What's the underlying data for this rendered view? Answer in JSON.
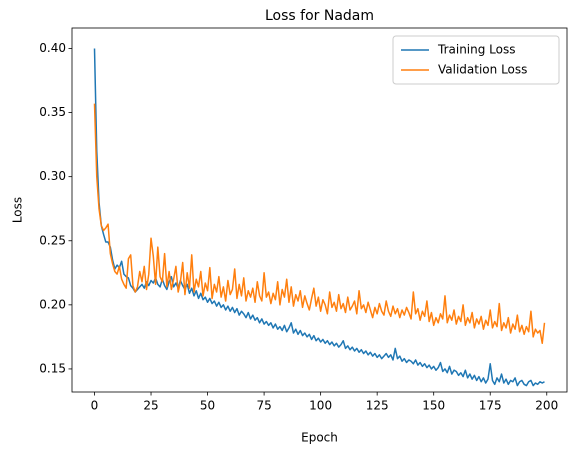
{
  "chart_data": {
    "type": "line",
    "title": "Loss for Nadam",
    "x_label": "Epoch",
    "y_label": "Loss",
    "x": [
      0,
      1,
      2,
      3,
      4,
      5,
      6,
      7,
      8,
      9,
      10,
      11,
      12,
      13,
      14,
      15,
      16,
      17,
      18,
      19,
      20,
      21,
      22,
      23,
      24,
      25,
      26,
      27,
      28,
      29,
      30,
      31,
      32,
      33,
      34,
      35,
      36,
      37,
      38,
      39,
      40,
      41,
      42,
      43,
      44,
      45,
      46,
      47,
      48,
      49,
      50,
      51,
      52,
      53,
      54,
      55,
      56,
      57,
      58,
      59,
      60,
      61,
      62,
      63,
      64,
      65,
      66,
      67,
      68,
      69,
      70,
      71,
      72,
      73,
      74,
      75,
      76,
      77,
      78,
      79,
      80,
      81,
      82,
      83,
      84,
      85,
      86,
      87,
      88,
      89,
      90,
      91,
      92,
      93,
      94,
      95,
      96,
      97,
      98,
      99,
      100,
      101,
      102,
      103,
      104,
      105,
      106,
      107,
      108,
      109,
      110,
      111,
      112,
      113,
      114,
      115,
      116,
      117,
      118,
      119,
      120,
      121,
      122,
      123,
      124,
      125,
      126,
      127,
      128,
      129,
      130,
      131,
      132,
      133,
      134,
      135,
      136,
      137,
      138,
      139,
      140,
      141,
      142,
      143,
      144,
      145,
      146,
      147,
      148,
      149,
      150,
      151,
      152,
      153,
      154,
      155,
      156,
      157,
      158,
      159,
      160,
      161,
      162,
      163,
      164,
      165,
      166,
      167,
      168,
      169,
      170,
      171,
      172,
      173,
      174,
      175,
      176,
      177,
      178,
      179,
      180,
      181,
      182,
      183,
      184,
      185,
      186,
      187,
      188,
      189,
      190,
      191,
      192,
      193,
      194,
      195,
      196,
      197,
      198,
      199
    ],
    "series": [
      {
        "name": "Training Loss",
        "color": "#1f77b4",
        "values": [
          0.4,
          0.32,
          0.28,
          0.262,
          0.255,
          0.249,
          0.249,
          0.245,
          0.235,
          0.228,
          0.231,
          0.229,
          0.234,
          0.224,
          0.222,
          0.221,
          0.215,
          0.213,
          0.21,
          0.212,
          0.214,
          0.216,
          0.213,
          0.218,
          0.215,
          0.219,
          0.217,
          0.221,
          0.216,
          0.214,
          0.22,
          0.215,
          0.212,
          0.218,
          0.222,
          0.214,
          0.217,
          0.213,
          0.219,
          0.215,
          0.212,
          0.216,
          0.209,
          0.213,
          0.207,
          0.211,
          0.205,
          0.209,
          0.204,
          0.206,
          0.202,
          0.205,
          0.201,
          0.203,
          0.199,
          0.202,
          0.198,
          0.2,
          0.196,
          0.199,
          0.195,
          0.198,
          0.194,
          0.197,
          0.192,
          0.195,
          0.193,
          0.19,
          0.194,
          0.189,
          0.192,
          0.188,
          0.19,
          0.186,
          0.189,
          0.185,
          0.187,
          0.184,
          0.186,
          0.182,
          0.185,
          0.181,
          0.183,
          0.18,
          0.184,
          0.179,
          0.182,
          0.186,
          0.178,
          0.181,
          0.177,
          0.18,
          0.176,
          0.178,
          0.175,
          0.177,
          0.173,
          0.176,
          0.172,
          0.174,
          0.171,
          0.173,
          0.17,
          0.172,
          0.169,
          0.171,
          0.168,
          0.17,
          0.167,
          0.169,
          0.172,
          0.166,
          0.168,
          0.165,
          0.167,
          0.164,
          0.166,
          0.163,
          0.165,
          0.162,
          0.164,
          0.161,
          0.163,
          0.16,
          0.162,
          0.159,
          0.161,
          0.158,
          0.16,
          0.162,
          0.159,
          0.161,
          0.157,
          0.166,
          0.158,
          0.16,
          0.156,
          0.158,
          0.155,
          0.157,
          0.156,
          0.154,
          0.157,
          0.153,
          0.155,
          0.152,
          0.154,
          0.151,
          0.153,
          0.15,
          0.152,
          0.149,
          0.151,
          0.155,
          0.148,
          0.15,
          0.147,
          0.152,
          0.146,
          0.149,
          0.148,
          0.145,
          0.147,
          0.144,
          0.149,
          0.143,
          0.146,
          0.142,
          0.145,
          0.141,
          0.144,
          0.14,
          0.143,
          0.139,
          0.142,
          0.154,
          0.141,
          0.138,
          0.143,
          0.14,
          0.146,
          0.139,
          0.142,
          0.138,
          0.141,
          0.14,
          0.143,
          0.137,
          0.14,
          0.141,
          0.138,
          0.137,
          0.14,
          0.141,
          0.137,
          0.139,
          0.138,
          0.14,
          0.139,
          0.14
        ]
      },
      {
        "name": "Validation Loss",
        "color": "#ff7f0e",
        "values": [
          0.357,
          0.3,
          0.275,
          0.262,
          0.258,
          0.26,
          0.263,
          0.24,
          0.232,
          0.226,
          0.224,
          0.23,
          0.22,
          0.216,
          0.213,
          0.236,
          0.239,
          0.215,
          0.21,
          0.214,
          0.226,
          0.218,
          0.23,
          0.212,
          0.224,
          0.252,
          0.238,
          0.216,
          0.245,
          0.222,
          0.218,
          0.24,
          0.214,
          0.226,
          0.212,
          0.22,
          0.23,
          0.21,
          0.218,
          0.233,
          0.208,
          0.225,
          0.213,
          0.239,
          0.21,
          0.22,
          0.214,
          0.226,
          0.207,
          0.217,
          0.211,
          0.229,
          0.205,
          0.216,
          0.21,
          0.222,
          0.206,
          0.214,
          0.203,
          0.219,
          0.208,
          0.212,
          0.228,
          0.205,
          0.216,
          0.207,
          0.221,
          0.203,
          0.211,
          0.206,
          0.213,
          0.202,
          0.218,
          0.207,
          0.203,
          0.225,
          0.206,
          0.21,
          0.201,
          0.209,
          0.204,
          0.218,
          0.2,
          0.212,
          0.206,
          0.22,
          0.202,
          0.214,
          0.199,
          0.208,
          0.203,
          0.211,
          0.198,
          0.207,
          0.201,
          0.196,
          0.205,
          0.213,
          0.199,
          0.206,
          0.195,
          0.204,
          0.2,
          0.193,
          0.21,
          0.198,
          0.202,
          0.195,
          0.208,
          0.197,
          0.201,
          0.194,
          0.206,
          0.196,
          0.199,
          0.203,
          0.193,
          0.211,
          0.197,
          0.2,
          0.194,
          0.202,
          0.196,
          0.19,
          0.198,
          0.193,
          0.201,
          0.195,
          0.192,
          0.203,
          0.195,
          0.191,
          0.199,
          0.193,
          0.197,
          0.19,
          0.196,
          0.192,
          0.198,
          0.194,
          0.189,
          0.21,
          0.193,
          0.197,
          0.188,
          0.195,
          0.191,
          0.203,
          0.187,
          0.194,
          0.184,
          0.19,
          0.186,
          0.193,
          0.189,
          0.207,
          0.186,
          0.192,
          0.188,
          0.196,
          0.185,
          0.191,
          0.187,
          0.2,
          0.184,
          0.19,
          0.186,
          0.194,
          0.182,
          0.189,
          0.185,
          0.191,
          0.181,
          0.188,
          0.184,
          0.196,
          0.182,
          0.187,
          0.183,
          0.201,
          0.18,
          0.186,
          0.182,
          0.19,
          0.178,
          0.185,
          0.181,
          0.192,
          0.179,
          0.184,
          0.177,
          0.183,
          0.179,
          0.195,
          0.175,
          0.181,
          0.178,
          0.18,
          0.17,
          0.186
        ]
      }
    ],
    "xlim": [
      -9.95,
      208.95
    ],
    "ylim": [
      0.132,
      0.416
    ],
    "xticks": [
      0,
      25,
      50,
      75,
      100,
      125,
      150,
      175,
      200
    ],
    "yticks": [
      0.15,
      {
        "value": 0.2,
        "label": "0.20"
      },
      0.25,
      {
        "value": 0.3,
        "label": "0.30"
      },
      0.35,
      {
        "value": 0.4,
        "label": "0.40"
      }
    ],
    "legend": "upper right"
  }
}
